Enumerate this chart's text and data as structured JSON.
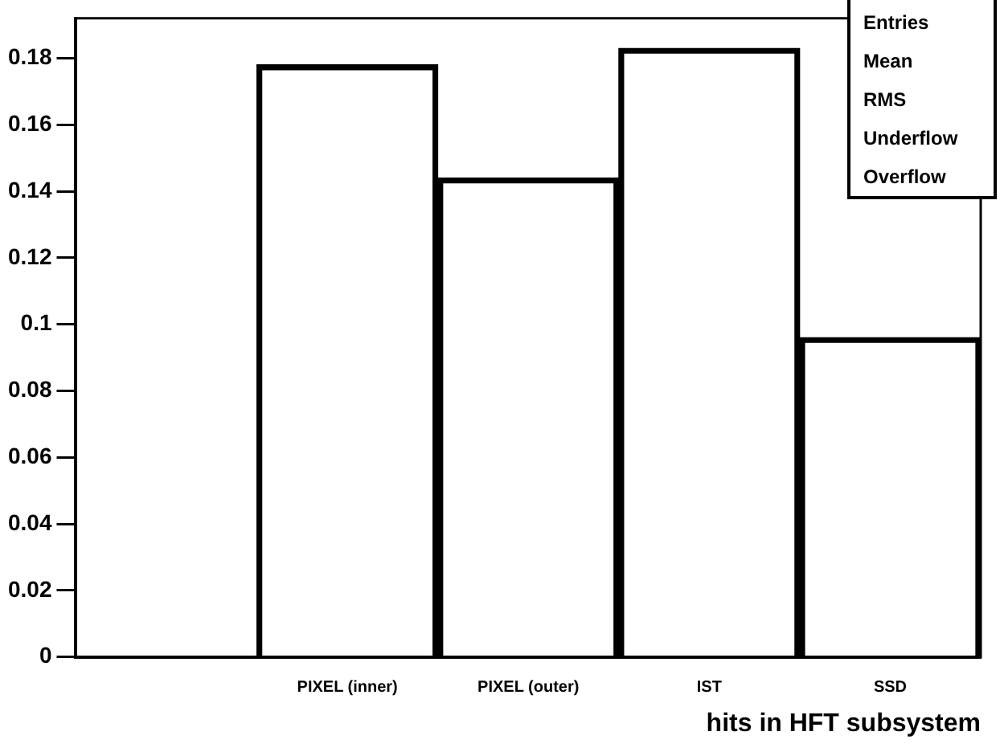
{
  "chart_data": {
    "type": "bar",
    "xlabel": "hits in HFT subsystem",
    "categories": [
      null,
      "PIXEL (inner)",
      "PIXEL (outer)",
      "IST",
      "SSD"
    ],
    "values": [
      0,
      0.178,
      0.144,
      0.183,
      0.096
    ],
    "color": "#000000",
    "ylim": [
      0,
      0.192
    ],
    "yticks": [
      0,
      0.02,
      0.04,
      0.06,
      0.08,
      0.1,
      0.12,
      0.14,
      0.16,
      0.18
    ],
    "grid": false,
    "legend": false,
    "annotations": [
      "Entries",
      "Mean",
      "RMS",
      "Underflow",
      "Overflow"
    ]
  }
}
